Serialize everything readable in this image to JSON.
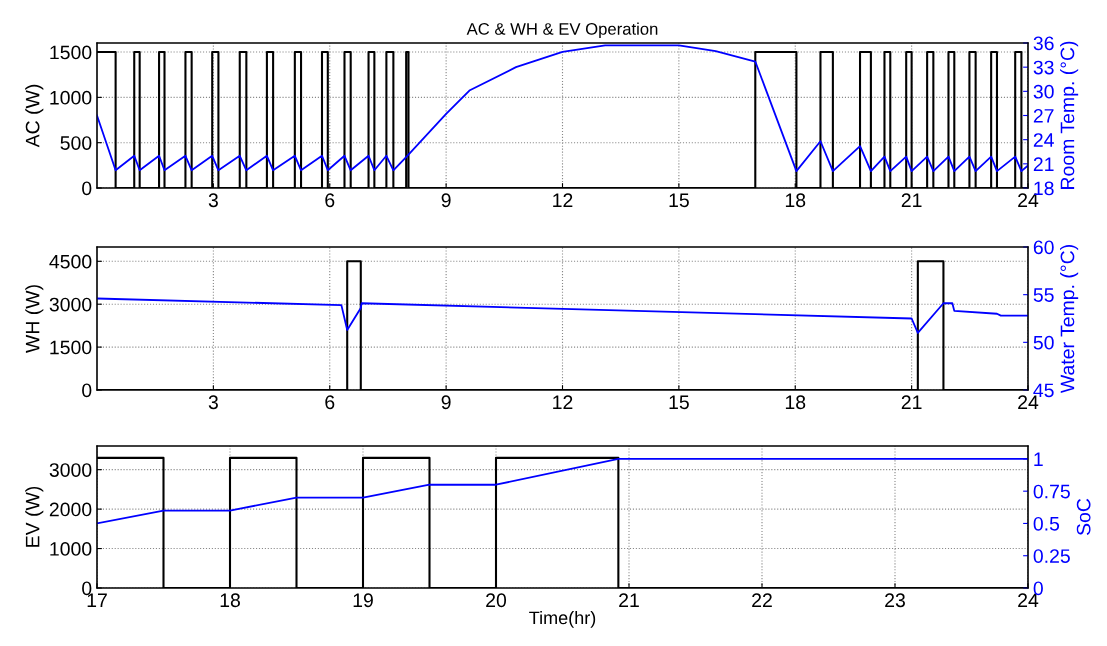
{
  "chart_data": [
    {
      "type": "line",
      "title": "AC & WH & EV Operation",
      "ylabel": "AC (W)",
      "y2label": "Room Temp. (°C)",
      "grid": true,
      "xlim": [
        0,
        24
      ],
      "xticks": [
        3,
        6,
        9,
        12,
        15,
        18,
        21,
        24
      ],
      "ylim": [
        0,
        1600
      ],
      "yticks": [
        0,
        500,
        1000,
        1500
      ],
      "y2lim": [
        18,
        36
      ],
      "y2ticks": [
        18,
        21,
        24,
        27,
        30,
        33,
        36
      ],
      "series": [
        {
          "type": "step",
          "color": "#000000",
          "x": [
            0,
            0.48,
            0.96,
            1.1,
            1.6,
            1.74,
            2.28,
            2.44,
            2.97,
            3.13,
            3.68,
            3.85,
            4.38,
            4.54,
            5.1,
            5.26,
            5.8,
            5.95,
            6.38,
            6.54,
            7.0,
            7.15,
            7.46,
            7.64,
            7.97,
            8.03,
            16.97,
            18.03,
            18.65,
            18.97,
            19.67,
            19.95,
            20.3,
            20.45,
            20.86,
            21.0,
            21.4,
            21.56,
            21.95,
            22.1,
            22.49,
            22.65,
            23.05,
            23.2,
            23.67,
            23.83,
            24
          ],
          "values": [
            1500,
            0,
            1500,
            0,
            1500,
            0,
            1500,
            0,
            1500,
            0,
            1500,
            0,
            1500,
            0,
            1500,
            0,
            1500,
            0,
            1500,
            0,
            1500,
            0,
            1500,
            0,
            1500,
            0,
            1500,
            0,
            1500,
            0,
            1500,
            0,
            1500,
            0,
            1500,
            0,
            1500,
            0,
            1500,
            0,
            1500,
            0,
            1500,
            0,
            1500,
            0,
            0
          ]
        },
        {
          "axis": "y2",
          "color": "#0000ff",
          "x": [
            0,
            0.48,
            0.96,
            1.1,
            1.6,
            1.74,
            2.28,
            2.44,
            2.97,
            3.13,
            3.68,
            3.85,
            4.38,
            4.54,
            5.1,
            5.26,
            5.8,
            5.95,
            6.38,
            6.54,
            7.0,
            7.15,
            7.46,
            7.64,
            8.0,
            9.0,
            9.6,
            10.8,
            12.0,
            13.1,
            15.0,
            15.95,
            16.97,
            18.03,
            18.65,
            18.97,
            19.67,
            19.95,
            20.3,
            20.45,
            20.86,
            21.0,
            21.4,
            21.56,
            21.95,
            22.1,
            22.49,
            22.65,
            23.05,
            23.2,
            23.67,
            23.83,
            24
          ],
          "values": [
            27.0,
            20.2,
            22.0,
            20.2,
            22.0,
            20.2,
            22.0,
            20.2,
            22.0,
            20.2,
            22.0,
            20.2,
            22.0,
            20.2,
            22.0,
            20.2,
            22.0,
            20.2,
            22.0,
            20.2,
            22.0,
            20.2,
            22.0,
            20.2,
            22.0,
            27.2,
            30.1,
            33.0,
            34.9,
            35.7,
            35.7,
            35.0,
            33.7,
            20.1,
            23.8,
            20.1,
            23.2,
            20.1,
            21.9,
            20.1,
            21.9,
            20.1,
            21.9,
            20.1,
            21.9,
            20.1,
            21.9,
            20.1,
            21.9,
            20.1,
            21.9,
            20.1,
            20.8
          ]
        }
      ]
    },
    {
      "type": "line",
      "ylabel": "WH (W)",
      "y2label": "Water Temp. (°C)",
      "grid": true,
      "xlim": [
        0,
        24
      ],
      "xticks": [
        3,
        6,
        9,
        12,
        15,
        18,
        21,
        24
      ],
      "ylim": [
        0,
        5000
      ],
      "yticks": [
        0,
        1500,
        3000,
        4500
      ],
      "y2lim": [
        45,
        60
      ],
      "y2ticks": [
        45,
        50,
        55,
        60
      ],
      "series": [
        {
          "type": "step",
          "color": "#000000",
          "x": [
            0,
            6.45,
            6.8,
            21.16,
            21.82,
            24
          ],
          "values": [
            0,
            4500,
            0,
            4500,
            0,
            0
          ]
        },
        {
          "axis": "y2",
          "color": "#0000ff",
          "x": [
            0,
            6.3,
            6.45,
            6.8,
            6.82,
            21.0,
            21.16,
            21.82,
            22.05,
            22.1,
            23.2,
            23.3,
            24
          ],
          "values": [
            54.6,
            53.9,
            51.3,
            53.6,
            54.1,
            52.5,
            51.0,
            54.1,
            54.1,
            53.3,
            53.0,
            52.8,
            52.8
          ]
        }
      ]
    },
    {
      "type": "line",
      "xlabel": "Time(hr)",
      "ylabel": "EV (W)",
      "y2label": "SoC",
      "grid": true,
      "xlim": [
        17,
        24
      ],
      "xticks": [
        17,
        18,
        19,
        20,
        21,
        22,
        23,
        24
      ],
      "ylim": [
        0,
        3600
      ],
      "yticks": [
        0,
        1000,
        2000,
        3000
      ],
      "y2lim": [
        0,
        1.1
      ],
      "y2ticks": [
        0,
        0.25,
        0.5,
        0.75,
        1
      ],
      "series": [
        {
          "type": "step",
          "color": "#000000",
          "x": [
            17,
            17.5,
            18,
            18.5,
            19,
            19.5,
            20,
            20.92,
            24
          ],
          "values": [
            3300,
            0,
            3300,
            0,
            3300,
            0,
            3300,
            0,
            0
          ]
        },
        {
          "axis": "y2",
          "color": "#0000ff",
          "x": [
            17,
            17.5,
            18,
            18.5,
            19,
            19.5,
            20,
            20.92,
            24
          ],
          "values": [
            0.5,
            0.6,
            0.6,
            0.7,
            0.7,
            0.8,
            0.8,
            1.0,
            1.0
          ]
        }
      ]
    }
  ]
}
